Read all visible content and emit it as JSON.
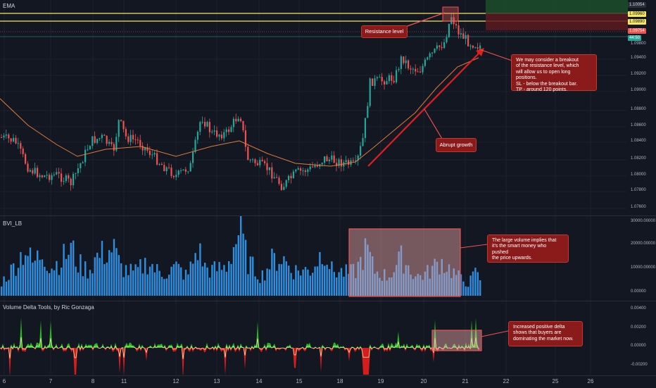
{
  "panels": {
    "main_label": "EMA",
    "bvi_label": "BVI_LB",
    "delta_label": "Volume Delta Tools, by Ric Gonzaga"
  },
  "price_axis": [
    "1.09400",
    "1.09200",
    "1.09000",
    "1.08800",
    "1.08600",
    "1.08400",
    "1.08200",
    "1.08000",
    "1.07800",
    "1.07600"
  ],
  "price_tags": {
    "top": "1.10054",
    "yellow1": "1.09960",
    "yellow2": "1.09890",
    "red": "1.09754",
    "teal_time": "44:50",
    "teal2": "1.09800"
  },
  "bvi_axis": [
    "30000.00000",
    "20000.00000",
    "10000.00000",
    "0.00000"
  ],
  "delta_axis": [
    "0.00400",
    "0.00200",
    "0.00000",
    "-0.00200"
  ],
  "x_axis": [
    "6",
    "7",
    "8",
    "11",
    "12",
    "13",
    "14",
    "15",
    "18",
    "19",
    "20",
    "21",
    "22",
    "25",
    "26"
  ],
  "annotations": {
    "resistance": "Resistance level",
    "abrupt": "Abrupt growth",
    "breakout": "We may consider a breakout\nof the resistance level, which\nwill allow us to open long positions.\nSL - below the breakout bar.\nTP - around 120 points.",
    "volume": "The large volume implies that\nit's the smart money who pushed\nthe price upwards.",
    "delta": "Increased positive delta\nshows that buyers are\ndominating the market now."
  },
  "colors": {
    "up": "#26a69a",
    "down": "#ef5350",
    "ema": "#e07b39",
    "bvi": "#2d8fe0",
    "delta_pos": "#22c322",
    "delta_neg": "#e01e1e",
    "note_bg": "#8b1a1a",
    "resistance": "#f5e663"
  }
}
